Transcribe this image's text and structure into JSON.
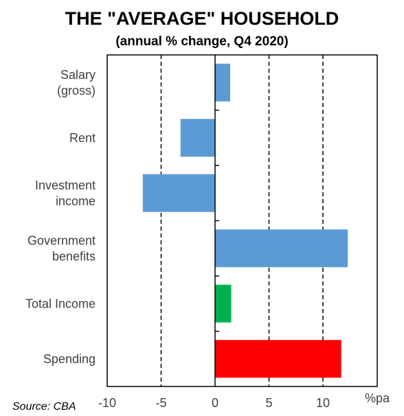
{
  "chart_data": {
    "type": "bar",
    "orientation": "horizontal",
    "title": "THE \"AVERAGE\" HOUSEHOLD",
    "subtitle": "(annual % change, Q4 2020)",
    "source": "Source: CBA",
    "xlabel": "%pa",
    "xlim": [
      -10,
      15
    ],
    "xticks": [
      -10,
      -5,
      0,
      5,
      10
    ],
    "dashed_gridlines_at": [
      -5,
      5,
      10
    ],
    "categories": [
      {
        "lines": [
          "Salary",
          "(gross)"
        ]
      },
      {
        "lines": [
          "Rent"
        ]
      },
      {
        "lines": [
          "Investment",
          "income"
        ]
      },
      {
        "lines": [
          "Government",
          "benefits"
        ]
      },
      {
        "lines": [
          "Total Income"
        ]
      },
      {
        "lines": [
          "Spending"
        ]
      }
    ],
    "values": [
      1.4,
      -3.2,
      -6.7,
      12.3,
      1.5,
      11.7
    ],
    "bar_colors": [
      "#5b9bd5",
      "#5b9bd5",
      "#5b9bd5",
      "#5b9bd5",
      "#00b050",
      "#ff0000"
    ]
  }
}
